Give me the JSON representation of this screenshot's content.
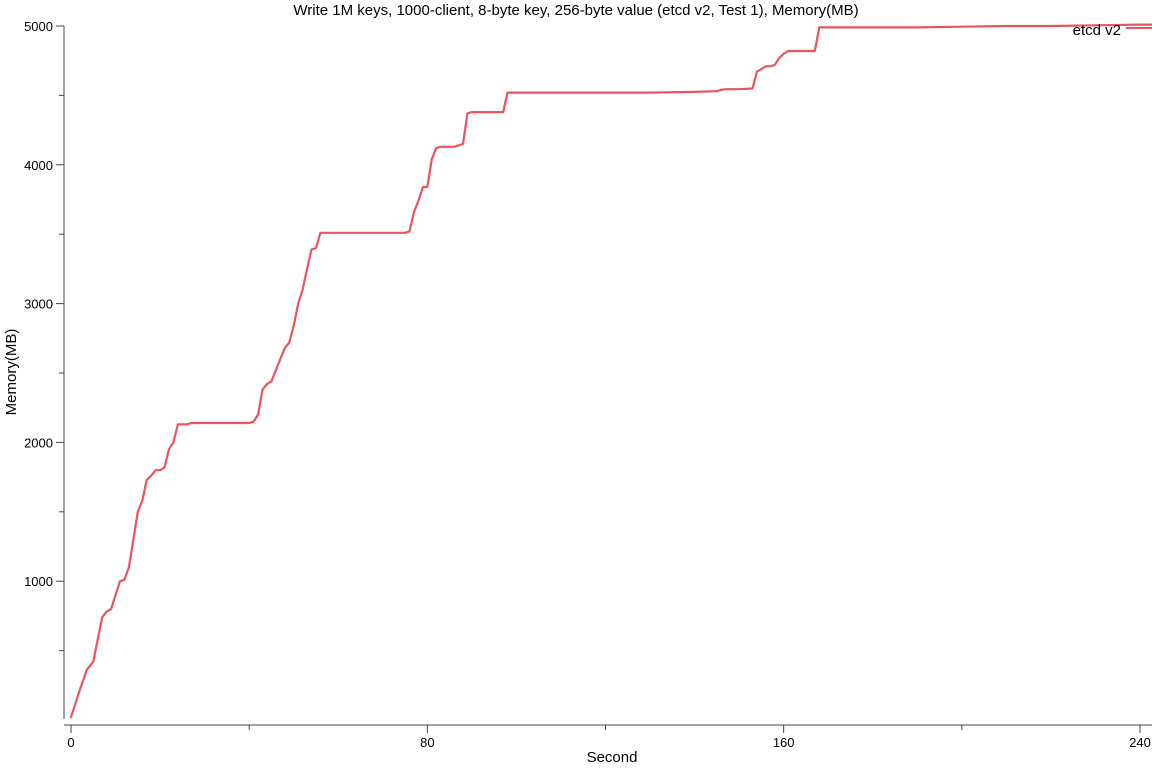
{
  "chart_data": {
    "type": "line",
    "title": "Write 1M keys, 1000-client, 8-byte key, 256-byte value (etcd v2, Test 1), Memory(MB)",
    "xlabel": "Second",
    "ylabel": "Memory(MB)",
    "xlim": [
      0,
      243
    ],
    "ylim": [
      0,
      5000
    ],
    "x_major_ticks": [
      0,
      80,
      160,
      240
    ],
    "x_minor_ticks": [
      40,
      120,
      200
    ],
    "y_major_ticks": [
      1000,
      2000,
      3000,
      4000,
      5000
    ],
    "y_minor_ticks": [
      500,
      1500,
      2500,
      3500,
      4500
    ],
    "grid": false,
    "legend": "top-right",
    "series": [
      {
        "name": "etcd v2",
        "color": "#e8555f",
        "points": [
          [
            0,
            20
          ],
          [
            1,
            120
          ],
          [
            2,
            220
          ],
          [
            3,
            310
          ],
          [
            3.5,
            360
          ],
          [
            4,
            380
          ],
          [
            4.5,
            400
          ],
          [
            5,
            420
          ],
          [
            6,
            580
          ],
          [
            7,
            740
          ],
          [
            8,
            780
          ],
          [
            9,
            800
          ],
          [
            10,
            900
          ],
          [
            11,
            1000
          ],
          [
            12,
            1010
          ],
          [
            13,
            1100
          ],
          [
            14,
            1300
          ],
          [
            15,
            1500
          ],
          [
            16,
            1580
          ],
          [
            17,
            1730
          ],
          [
            18,
            1760
          ],
          [
            19,
            1800
          ],
          [
            20,
            1800
          ],
          [
            21,
            1820
          ],
          [
            22,
            1950
          ],
          [
            23,
            2000
          ],
          [
            24,
            2130
          ],
          [
            25,
            2130
          ],
          [
            26,
            2130
          ],
          [
            27,
            2140
          ],
          [
            30,
            2140
          ],
          [
            35,
            2140
          ],
          [
            40,
            2140
          ],
          [
            41,
            2150
          ],
          [
            42,
            2200
          ],
          [
            43,
            2380
          ],
          [
            44,
            2420
          ],
          [
            45,
            2440
          ],
          [
            46,
            2520
          ],
          [
            47,
            2600
          ],
          [
            48,
            2680
          ],
          [
            49,
            2720
          ],
          [
            50,
            2840
          ],
          [
            51,
            3000
          ],
          [
            52,
            3100
          ],
          [
            53,
            3250
          ],
          [
            54,
            3390
          ],
          [
            55,
            3400
          ],
          [
            56,
            3510
          ],
          [
            60,
            3510
          ],
          [
            65,
            3510
          ],
          [
            70,
            3510
          ],
          [
            75,
            3510
          ],
          [
            76,
            3520
          ],
          [
            77,
            3660
          ],
          [
            78,
            3740
          ],
          [
            79,
            3840
          ],
          [
            80,
            3840
          ],
          [
            81,
            4040
          ],
          [
            82,
            4120
          ],
          [
            83,
            4130
          ],
          [
            84,
            4130
          ],
          [
            86,
            4130
          ],
          [
            87,
            4140
          ],
          [
            88,
            4150
          ],
          [
            89,
            4370
          ],
          [
            90,
            4380
          ],
          [
            95,
            4380
          ],
          [
            97,
            4380
          ],
          [
            98,
            4520
          ],
          [
            100,
            4520
          ],
          [
            110,
            4520
          ],
          [
            120,
            4520
          ],
          [
            130,
            4520
          ],
          [
            140,
            4525
          ],
          [
            145,
            4530
          ],
          [
            146,
            4540
          ],
          [
            147,
            4545
          ],
          [
            150,
            4545
          ],
          [
            153,
            4550
          ],
          [
            154,
            4670
          ],
          [
            155,
            4690
          ],
          [
            156,
            4710
          ],
          [
            157,
            4710
          ],
          [
            158,
            4720
          ],
          [
            159,
            4770
          ],
          [
            160,
            4800
          ],
          [
            161,
            4820
          ],
          [
            163,
            4820
          ],
          [
            167,
            4820
          ],
          [
            168,
            4990
          ],
          [
            170,
            4990
          ],
          [
            180,
            4990
          ],
          [
            190,
            4990
          ],
          [
            200,
            4995
          ],
          [
            210,
            5000
          ],
          [
            220,
            5000
          ],
          [
            230,
            5005
          ],
          [
            240,
            5010
          ],
          [
            243,
            5010
          ]
        ]
      }
    ]
  }
}
